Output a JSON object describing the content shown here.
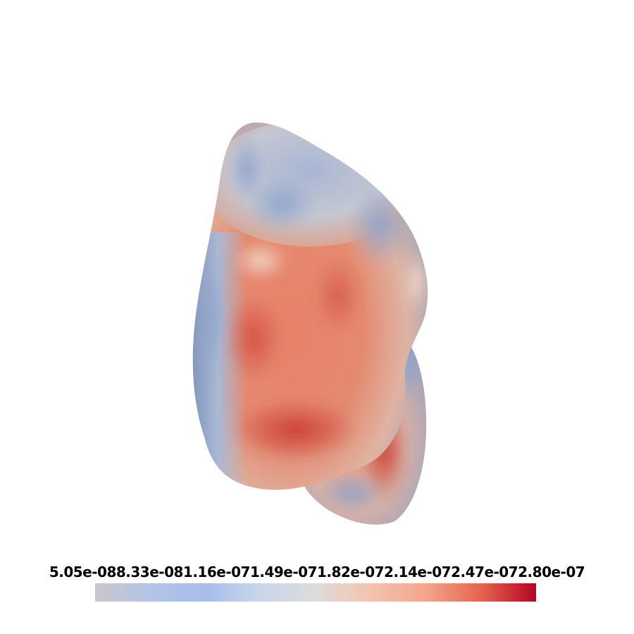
{
  "scene": {
    "object": "colormapped-3d-surface",
    "background": "#ffffff"
  },
  "colorbar": {
    "labels": [
      "5.05e-08",
      "8.33e-08",
      "1.16e-07",
      "1.49e-07",
      "1.82e-07",
      "2.14e-07",
      "2.47e-07",
      "2.80e-07"
    ],
    "colormap": [
      "#c8c8c8",
      "#b4c4e8",
      "#a7bde9",
      "#c9d6ec",
      "#dddcdb",
      "#f2c4b0",
      "#f4a58c",
      "#e4644f",
      "#b40426"
    ],
    "orientation": "horizontal"
  }
}
